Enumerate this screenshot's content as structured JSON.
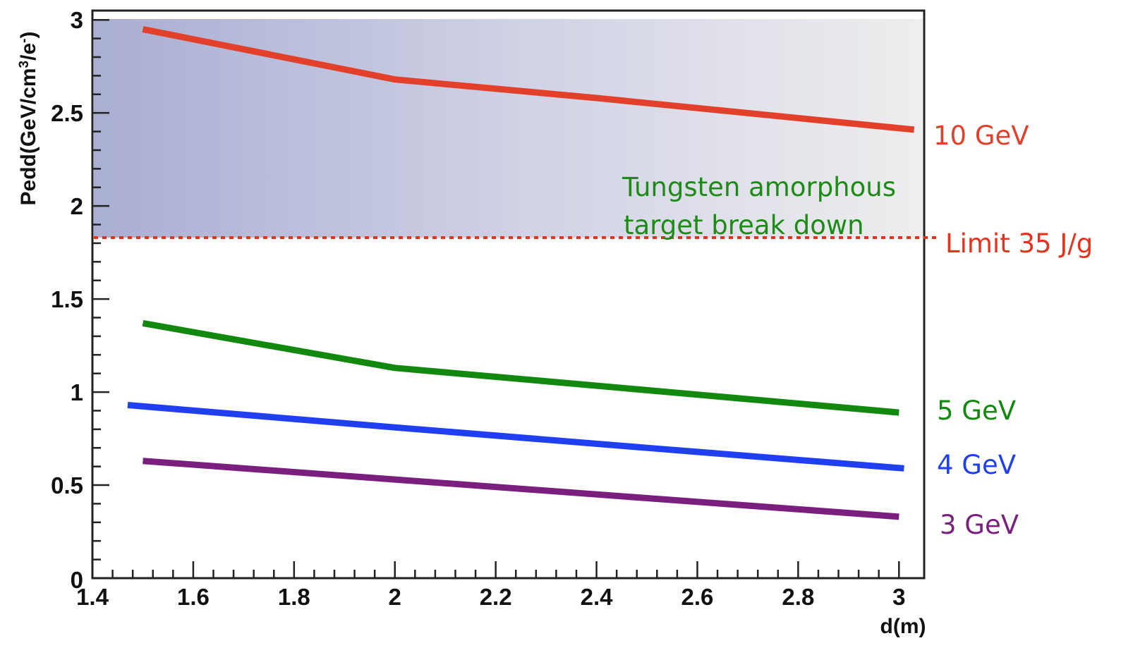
{
  "chart_data": {
    "type": "line",
    "title": "",
    "xlabel": "d(m)",
    "ylabel_main": "Pedd(GeV/cm",
    "ylabel_sup1": "3",
    "ylabel_mid": "/e",
    "ylabel_sup2": "-",
    "ylabel_end": ")",
    "xlim": [
      1.4,
      3.05
    ],
    "ylim": [
      0,
      3.05
    ],
    "x_ticks": [
      1.4,
      1.6,
      1.8,
      2,
      2.2,
      2.4,
      2.6,
      2.8,
      3
    ],
    "x_tick_labels": [
      "1.4",
      "1.6",
      "1.8",
      "2",
      "2.2",
      "2.4",
      "2.6",
      "2.8",
      "3"
    ],
    "y_ticks": [
      0,
      0.5,
      1,
      1.5,
      2,
      2.5,
      3
    ],
    "y_tick_labels": [
      "0",
      "0.5",
      "1",
      "1.5",
      "2",
      "2.5",
      "3"
    ],
    "limit": {
      "value": 1.83,
      "label": "Limit 35 J/g",
      "color": "#e8311c"
    },
    "region": {
      "label_line1": "Tungsten amorphous",
      "label_line2": "target break down",
      "label_color": "#1e8a17"
    },
    "series": [
      {
        "name": "10 GeV",
        "color": "#e2402a",
        "x": [
          1.5,
          2.0,
          2.4,
          3.03
        ],
        "y": [
          2.95,
          2.68,
          2.58,
          2.41
        ]
      },
      {
        "name": "5 GeV",
        "color": "#12880f",
        "x": [
          1.5,
          2.0,
          2.5,
          3.0
        ],
        "y": [
          1.37,
          1.13,
          1.01,
          0.89
        ]
      },
      {
        "name": "4 GeV",
        "color": "#1f3ff0",
        "x": [
          1.47,
          2.0,
          2.5,
          3.01
        ],
        "y": [
          0.93,
          0.81,
          0.7,
          0.59
        ]
      },
      {
        "name": "3 GeV",
        "color": "#7a1f7e",
        "x": [
          1.5,
          2.0,
          2.5,
          3.0
        ],
        "y": [
          0.63,
          0.53,
          0.43,
          0.33
        ]
      }
    ]
  }
}
